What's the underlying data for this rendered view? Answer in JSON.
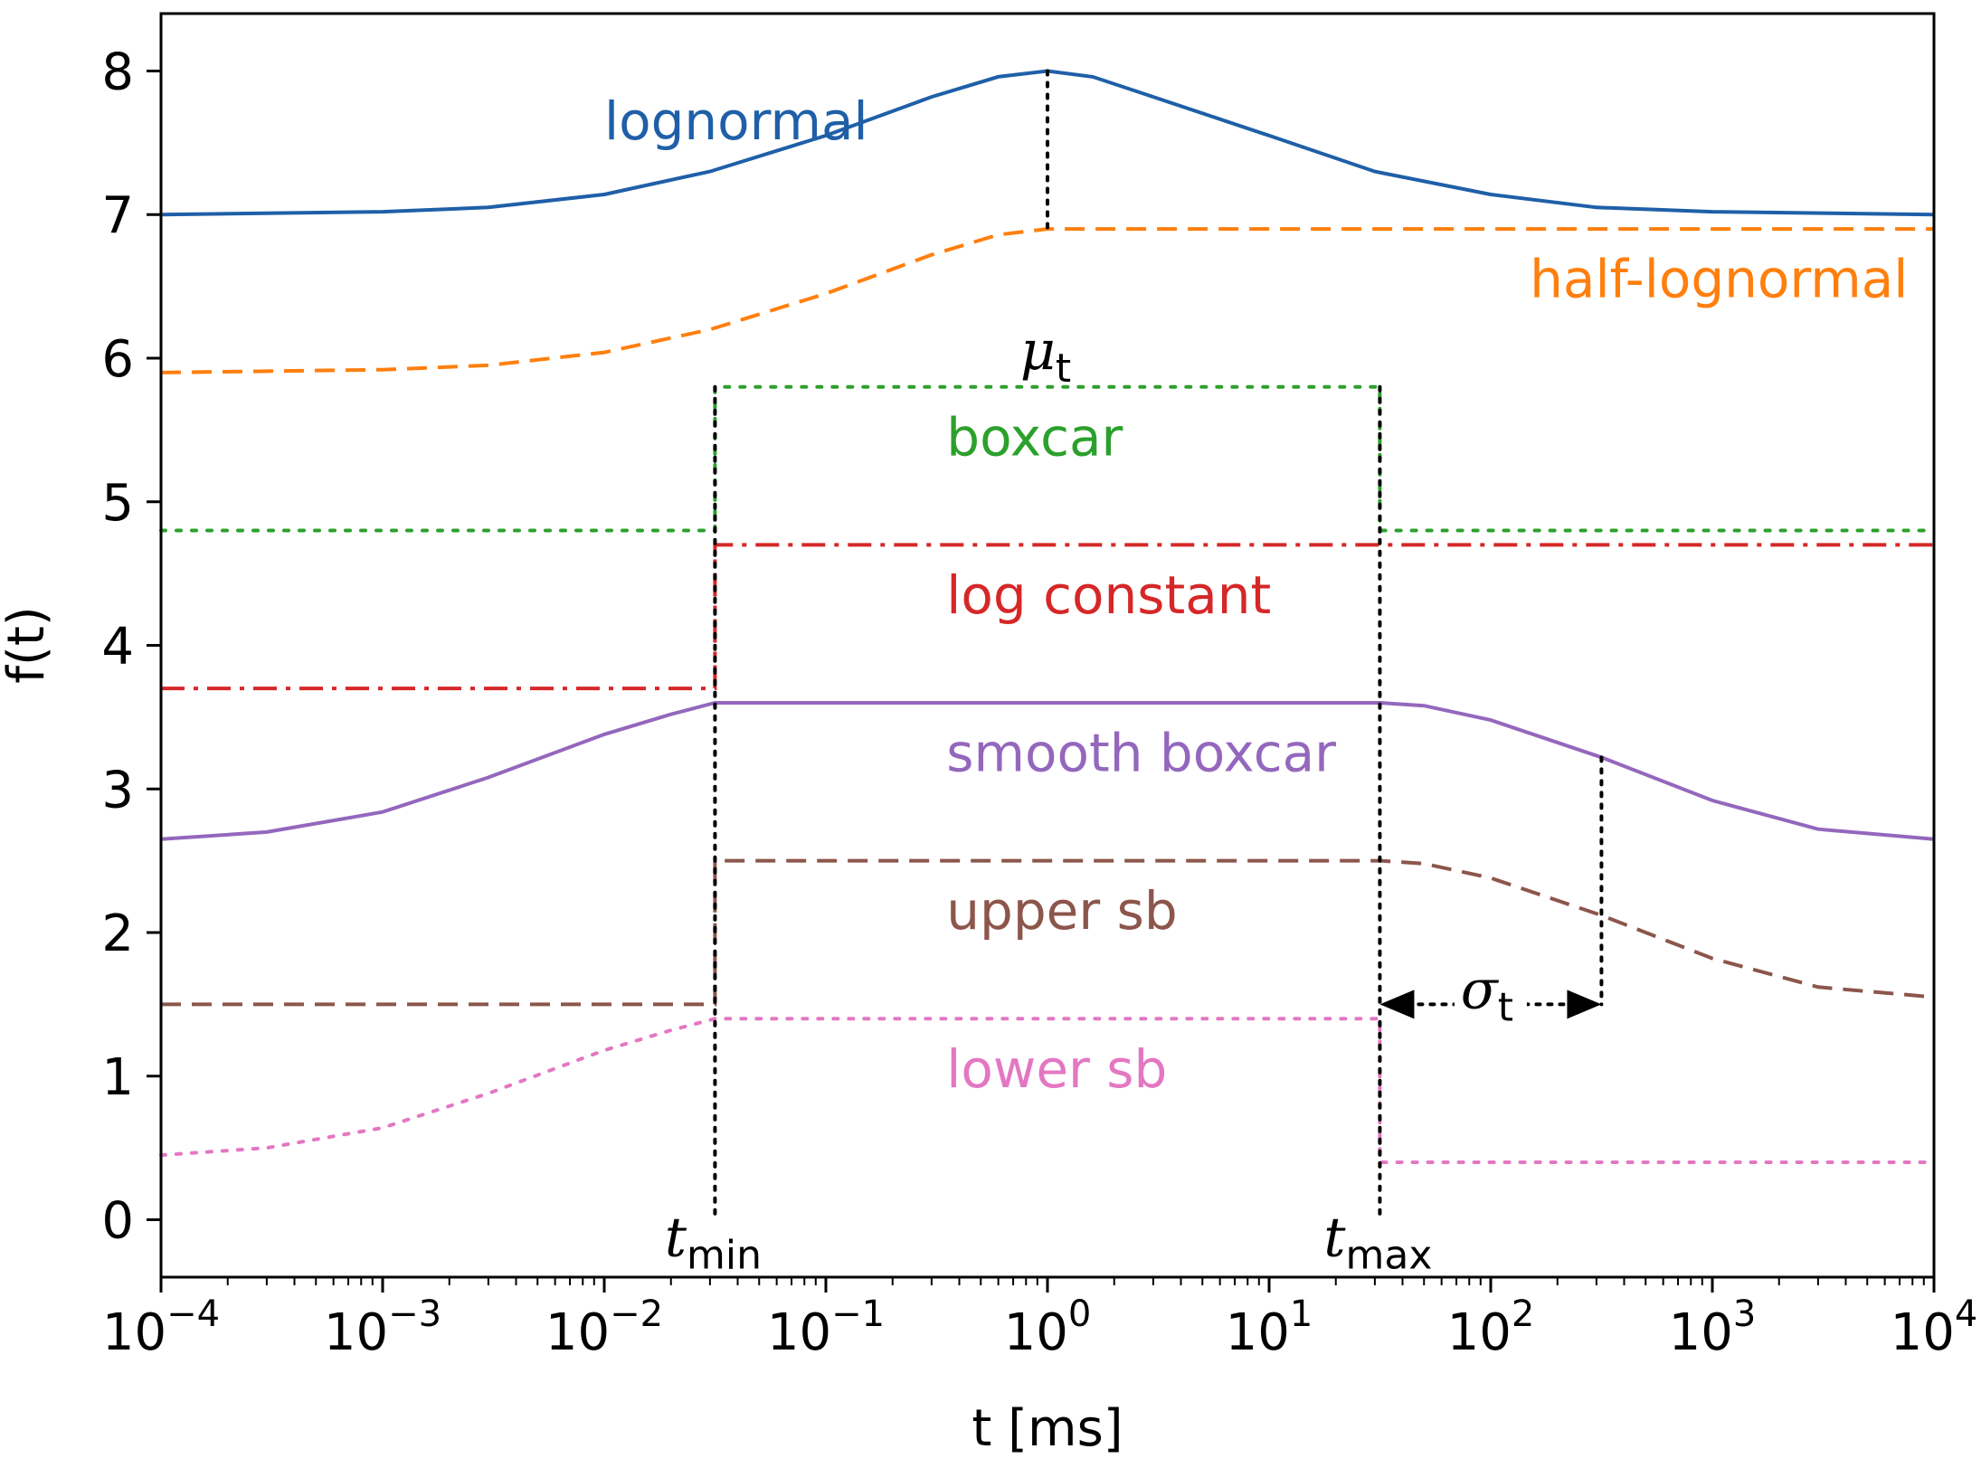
{
  "chart_data": {
    "type": "line",
    "title": "",
    "xlabel": "t [ms]",
    "ylabel": "f(t)",
    "xscale": "log",
    "xlim": [
      0.0001,
      10000
    ],
    "ylim": [
      -0.4,
      8.4
    ],
    "grid": false,
    "legend": "none (inline labels)",
    "x_ticks": [
      {
        "value": 0.0001,
        "base": "10",
        "exp": "−4"
      },
      {
        "value": 0.001,
        "base": "10",
        "exp": "−3"
      },
      {
        "value": 0.01,
        "base": "10",
        "exp": "−2"
      },
      {
        "value": 0.1,
        "base": "10",
        "exp": "−1"
      },
      {
        "value": 1,
        "base": "10",
        "exp": "0"
      },
      {
        "value": 10,
        "base": "10",
        "exp": "1"
      },
      {
        "value": 100,
        "base": "10",
        "exp": "2"
      },
      {
        "value": 1000,
        "base": "10",
        "exp": "3"
      },
      {
        "value": 10000,
        "base": "10",
        "exp": "4"
      }
    ],
    "y_ticks": [
      {
        "value": 0,
        "label": "0"
      },
      {
        "value": 1,
        "label": "1"
      },
      {
        "value": 2,
        "label": "2"
      },
      {
        "value": 3,
        "label": "3"
      },
      {
        "value": 4,
        "label": "4"
      },
      {
        "value": 5,
        "label": "5"
      },
      {
        "value": 6,
        "label": "6"
      },
      {
        "value": 7,
        "label": "7"
      },
      {
        "value": 8,
        "label": "8"
      }
    ],
    "series": [
      {
        "name": "lognormal",
        "color": "#1f5fa8",
        "dash": "solid",
        "label_at": [
          0.01,
          7.65
        ],
        "x": [
          0.0001,
          0.001,
          0.003,
          0.01,
          0.03,
          0.1,
          0.3,
          0.6,
          1,
          1.6,
          3,
          10,
          30,
          100,
          300,
          1000,
          10000
        ],
        "y": [
          7.0,
          7.02,
          7.05,
          7.14,
          7.3,
          7.55,
          7.82,
          7.96,
          8.0,
          7.96,
          7.82,
          7.55,
          7.3,
          7.14,
          7.05,
          7.02,
          7.0
        ]
      },
      {
        "name": "half-lognormal",
        "color": "#ff7f0e",
        "dash": "dashed",
        "label_at": [
          150,
          6.55
        ],
        "x": [
          0.0001,
          0.001,
          0.003,
          0.01,
          0.03,
          0.1,
          0.3,
          0.6,
          1,
          10,
          100,
          1000,
          10000
        ],
        "y": [
          5.9,
          5.92,
          5.95,
          6.04,
          6.2,
          6.45,
          6.72,
          6.86,
          6.9,
          6.9,
          6.9,
          6.9,
          6.9
        ]
      },
      {
        "name": "boxcar",
        "color": "#2ca02c",
        "dash": "dotted",
        "label_at": [
          0.35,
          5.45
        ],
        "x": [
          0.0001,
          0.0316,
          0.0316,
          31.6,
          31.6,
          10000
        ],
        "y": [
          4.8,
          4.8,
          5.8,
          5.8,
          4.8,
          4.8
        ]
      },
      {
        "name": "log constant",
        "color": "#d62728",
        "dash": "dashdot",
        "label_at": [
          0.35,
          4.35
        ],
        "x": [
          0.0001,
          0.0316,
          0.0316,
          10000
        ],
        "y": [
          3.7,
          3.7,
          4.7,
          4.7
        ]
      },
      {
        "name": "smooth boxcar",
        "color": "#9467bd",
        "dash": "solid",
        "label_at": [
          0.35,
          3.25
        ],
        "x": [
          0.0001,
          0.0003,
          0.001,
          0.003,
          0.01,
          0.02,
          0.0316,
          1,
          31.6,
          50,
          100,
          316,
          1000,
          3000,
          10000
        ],
        "y": [
          2.65,
          2.7,
          2.84,
          3.08,
          3.38,
          3.52,
          3.6,
          3.6,
          3.6,
          3.58,
          3.48,
          3.22,
          2.92,
          2.72,
          2.65
        ]
      },
      {
        "name": "upper sb",
        "color": "#8c564b",
        "dash": "dashed",
        "label_at": [
          0.35,
          2.15
        ],
        "x": [
          0.0001,
          0.0316,
          0.0316,
          31.6,
          50,
          100,
          316,
          1000,
          3000,
          10000
        ],
        "y": [
          1.5,
          1.5,
          2.5,
          2.5,
          2.48,
          2.38,
          2.12,
          1.82,
          1.62,
          1.55
        ]
      },
      {
        "name": "lower sb",
        "color": "#e377c2",
        "dash": "dotted",
        "label_at": [
          0.35,
          1.05
        ],
        "x": [
          0.0001,
          0.0003,
          0.001,
          0.003,
          0.01,
          0.02,
          0.0316,
          31.6,
          31.6,
          10000
        ],
        "y": [
          0.45,
          0.5,
          0.64,
          0.88,
          1.18,
          1.32,
          1.4,
          1.4,
          0.4,
          0.4
        ]
      }
    ],
    "annotations": {
      "mu": {
        "symbol": "μ",
        "sub": "t",
        "x": 1,
        "y_top": 8.0,
        "y_bottom": 6.9
      },
      "tmin": {
        "symbol": "t",
        "sub": "min",
        "x": 0.0316,
        "y_top": 5.8,
        "y_bottom": 0
      },
      "tmax": {
        "symbol": "t",
        "sub": "max",
        "x": 31.6,
        "y_top": 5.8,
        "y_bottom": 0
      },
      "sigma_marker": {
        "x": 316,
        "y_top": 3.22,
        "y_bottom": 1.5
      },
      "sigma": {
        "symbol": "σ",
        "sub": "t",
        "x_from": 31.6,
        "x_to": 316,
        "y": 1.5
      }
    }
  }
}
